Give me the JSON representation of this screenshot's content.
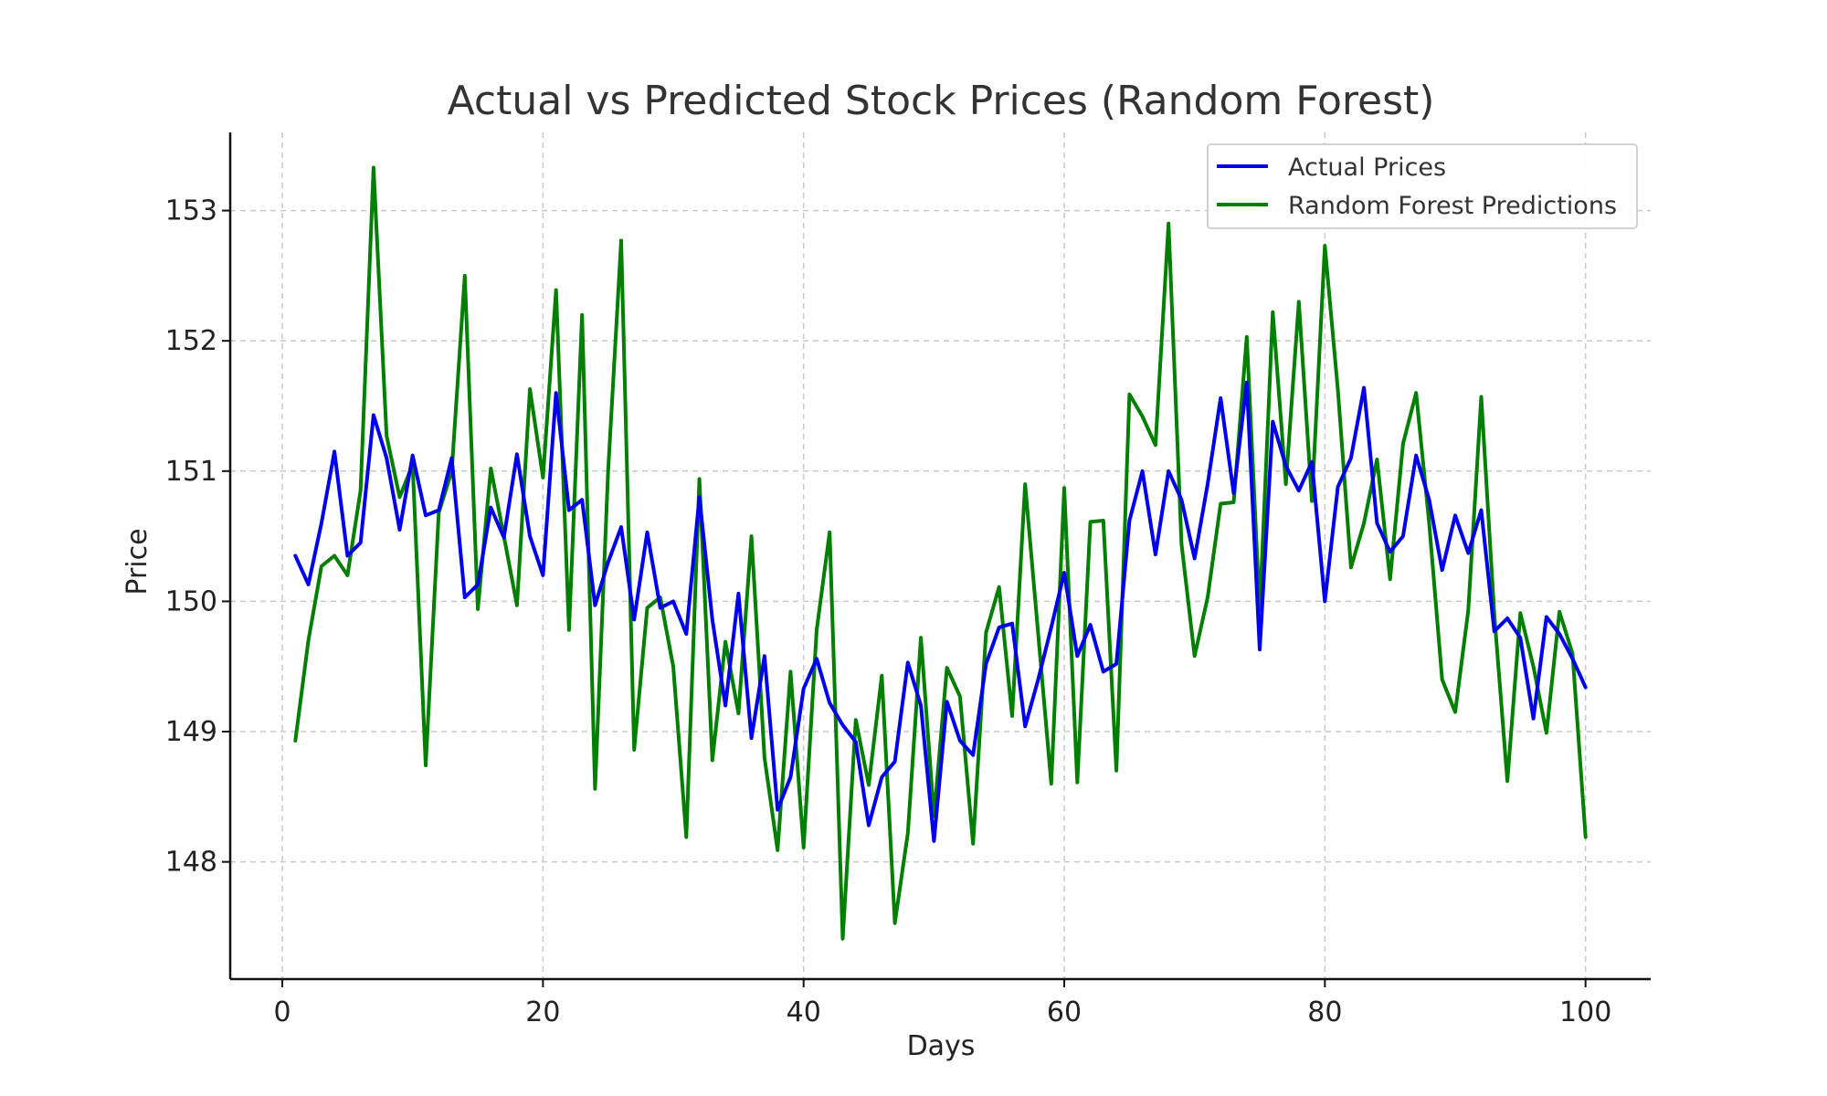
{
  "chart_data": {
    "type": "line",
    "title": "Actual vs Predicted Stock Prices (Random Forest)",
    "xlabel": "Days",
    "ylabel": "Price",
    "xlim": [
      -4,
      105
    ],
    "ylim": [
      147.1,
      153.6
    ],
    "xticks": [
      0,
      20,
      40,
      60,
      80,
      100
    ],
    "yticks": [
      148,
      149,
      150,
      151,
      152,
      153
    ],
    "grid": true,
    "legend_position": "top-right",
    "x": [
      1,
      2,
      3,
      4,
      5,
      6,
      7,
      8,
      9,
      10,
      11,
      12,
      13,
      14,
      15,
      16,
      17,
      18,
      19,
      20,
      21,
      22,
      23,
      24,
      25,
      26,
      27,
      28,
      29,
      30,
      31,
      32,
      33,
      34,
      35,
      36,
      37,
      38,
      39,
      40,
      41,
      42,
      43,
      44,
      45,
      46,
      47,
      48,
      49,
      50,
      51,
      52,
      53,
      54,
      55,
      56,
      57,
      58,
      59,
      60,
      61,
      62,
      63,
      64,
      65,
      66,
      67,
      68,
      69,
      70,
      71,
      72,
      73,
      74,
      75,
      76,
      77,
      78,
      79,
      80,
      81,
      82,
      83,
      84,
      85,
      86,
      87,
      88,
      89,
      90,
      91,
      92,
      93,
      94,
      95,
      96,
      97,
      98,
      99,
      100
    ],
    "series": [
      {
        "name": "Actual Prices",
        "color": "#0000ee",
        "values": [
          150.35,
          150.13,
          150.6,
          151.15,
          150.35,
          150.45,
          151.43,
          151.1,
          150.55,
          151.12,
          150.66,
          150.7,
          151.1,
          150.03,
          150.13,
          150.72,
          150.49,
          151.13,
          150.5,
          150.2,
          151.6,
          150.7,
          150.78,
          149.97,
          150.3,
          150.57,
          149.86,
          150.53,
          149.95,
          150.0,
          149.75,
          150.8,
          149.86,
          149.2,
          150.06,
          148.95,
          149.58,
          148.4,
          148.65,
          149.33,
          149.56,
          149.22,
          149.05,
          148.92,
          148.28,
          148.65,
          148.77,
          149.53,
          149.2,
          148.16,
          149.23,
          148.93,
          148.82,
          149.52,
          149.8,
          149.83,
          149.04,
          149.4,
          149.8,
          150.22,
          149.58,
          149.82,
          149.46,
          149.52,
          150.62,
          151.0,
          150.36,
          151.0,
          150.78,
          150.33,
          150.9,
          151.56,
          150.83,
          151.68,
          149.63,
          151.38,
          151.04,
          150.85,
          151.07,
          150.0,
          150.88,
          151.1,
          151.64,
          150.6,
          150.38,
          150.5,
          151.12,
          150.78,
          150.24,
          150.66,
          150.37,
          150.7,
          149.77,
          149.87,
          149.72,
          149.1,
          149.88,
          149.75,
          149.56,
          149.34
        ]
      },
      {
        "name": "Random Forest Predictions",
        "color": "#007f00",
        "values": [
          148.93,
          149.7,
          150.27,
          150.35,
          150.2,
          150.85,
          153.33,
          151.27,
          150.8,
          151.05,
          148.74,
          150.68,
          151.0,
          152.5,
          149.94,
          151.02,
          150.5,
          149.97,
          151.63,
          150.95,
          152.39,
          149.78,
          152.2,
          148.56,
          151.0,
          152.77,
          148.86,
          149.95,
          150.03,
          149.5,
          148.19,
          150.94,
          148.78,
          149.69,
          149.14,
          150.5,
          148.8,
          148.09,
          149.46,
          148.11,
          149.78,
          150.53,
          147.41,
          149.09,
          148.59,
          149.43,
          147.53,
          148.22,
          149.72,
          148.35,
          149.49,
          149.27,
          148.14,
          149.76,
          150.11,
          149.12,
          150.9,
          149.75,
          148.6,
          150.87,
          148.61,
          150.61,
          150.62,
          148.7,
          151.59,
          151.42,
          151.2,
          152.9,
          150.44,
          149.58,
          150.03,
          150.75,
          150.76,
          152.03,
          149.93,
          152.22,
          150.9,
          152.3,
          150.77,
          152.73,
          151.62,
          150.26,
          150.6,
          151.09,
          150.17,
          151.21,
          151.6,
          150.6,
          149.4,
          149.15,
          149.93,
          151.57,
          149.9,
          148.62,
          149.91,
          149.5,
          148.99,
          149.92,
          149.6,
          148.19
        ]
      }
    ]
  }
}
